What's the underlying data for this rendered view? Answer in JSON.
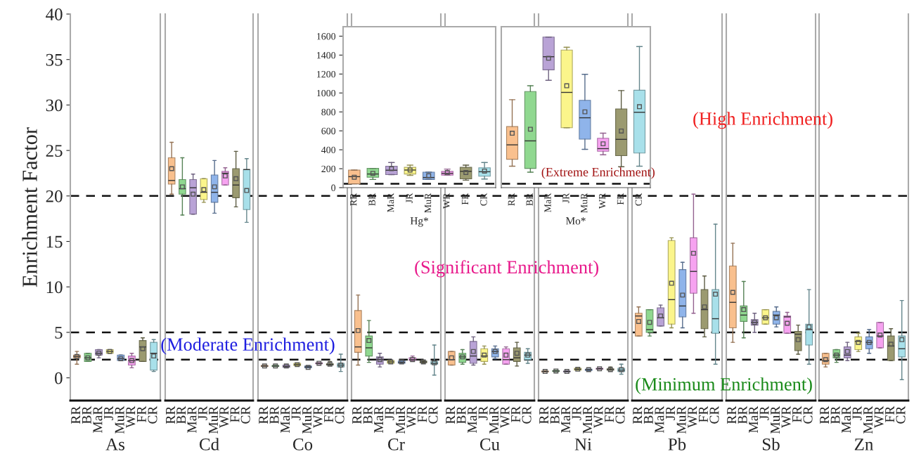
{
  "chart_data": [
    {
      "type": "box",
      "xlabel": "As",
      "ylabel": "Enrichment Factor",
      "categories": [
        "RR",
        "BR",
        "MaR",
        "JR",
        "MuR",
        "WR",
        "FR",
        "CR"
      ],
      "colors": [
        "#f9c08e",
        "#90d890",
        "#b9a3d6",
        "#fbf58b",
        "#8fb4ea",
        "#f6a3f0",
        "#9b9a70",
        "#a8e0ea"
      ],
      "ylim": [
        -2.5,
        40
      ],
      "yticks": [
        0,
        5,
        10,
        15,
        20,
        25,
        30,
        35,
        40
      ],
      "ref_lines": [
        {
          "axis": "y",
          "value": 2,
          "line_style": "dashed"
        },
        {
          "axis": "y",
          "value": 5,
          "line_style": "dashed"
        },
        {
          "axis": "y",
          "value": 20,
          "line_style": "dashed"
        }
      ],
      "boxes": [
        {
          "low": 1.5,
          "q1": 2.2,
          "median": 2.35,
          "q3": 2.5,
          "high": 2.9,
          "mean": 2.35
        },
        {
          "low": 1.8,
          "q1": 1.8,
          "median": 2.2,
          "q3": 2.7,
          "high": 2.7,
          "mean": 2.2
        },
        {
          "low": 2.2,
          "q1": 2.5,
          "median": 2.7,
          "q3": 3.1,
          "high": 3.1,
          "mean": 2.7
        },
        {
          "low": 2.7,
          "q1": 2.7,
          "median": 2.9,
          "q3": 3.1,
          "high": 3.1,
          "mean": 2.9
        },
        {
          "low": 1.9,
          "q1": 1.9,
          "median": 2.1,
          "q3": 2.5,
          "high": 2.5,
          "mean": 2.1
        },
        {
          "low": 1.1,
          "q1": 1.4,
          "median": 1.9,
          "q3": 2.4,
          "high": 2.7,
          "mean": 1.9
        },
        {
          "low": 1.8,
          "q1": 1.8,
          "median": 3.4,
          "q3": 4.1,
          "high": 4.4,
          "mean": 3.2
        },
        {
          "low": 0.7,
          "q1": 0.85,
          "median": 2.7,
          "q3": 3.9,
          "high": 4.2,
          "mean": 2.4
        }
      ]
    },
    {
      "type": "box",
      "xlabel": "Cd",
      "categories": [
        "RR",
        "BR",
        "MaR",
        "JR",
        "MuR",
        "WR",
        "FR",
        "CR"
      ],
      "colors": [
        "#f9c08e",
        "#90d890",
        "#b9a3d6",
        "#fbf58b",
        "#8fb4ea",
        "#f6a3f0",
        "#9b9a70",
        "#a8e0ea"
      ],
      "ylim": [
        -2.5,
        40
      ],
      "yticks": [
        0,
        5,
        10,
        15,
        20,
        25,
        30,
        35,
        40
      ],
      "tick_labels": "x",
      "annotations": [
        "(Moderate Enrichment)"
      ],
      "ref_lines": [
        {
          "axis": "y",
          "value": 2,
          "line_style": "dashed"
        },
        {
          "axis": "y",
          "value": 5,
          "line_style": "dashed"
        },
        {
          "axis": "y",
          "value": 20,
          "line_style": "dashed"
        }
      ],
      "boxes": [
        {
          "low": 20.2,
          "q1": 21.3,
          "median": 21.7,
          "q3": 24.2,
          "high": 25.9,
          "mean": 23.0
        },
        {
          "low": 17.9,
          "q1": 20.2,
          "median": 20.8,
          "q3": 21.8,
          "high": 24.2,
          "mean": 21.0
        },
        {
          "low": 18.0,
          "q1": 18.0,
          "median": 20.9,
          "q3": 21.8,
          "high": 22.4,
          "mean": 20.2
        },
        {
          "low": 19.3,
          "q1": 19.6,
          "median": 20.4,
          "q3": 21.9,
          "high": 21.9,
          "mean": 20.7
        },
        {
          "low": 18.1,
          "q1": 19.3,
          "median": 20.4,
          "q3": 22.3,
          "high": 23.9,
          "mean": 21.0
        },
        {
          "low": 21.2,
          "q1": 21.2,
          "median": 22.5,
          "q3": 22.7,
          "high": 23.1,
          "mean": 22.2
        },
        {
          "low": 18.8,
          "q1": 19.8,
          "median": 21.2,
          "q3": 23.0,
          "high": 24.9,
          "mean": 21.9
        },
        {
          "low": 17.1,
          "q1": 18.5,
          "median": 22.9,
          "q3": 22.9,
          "high": 24.1,
          "mean": 20.6
        }
      ]
    },
    {
      "type": "box",
      "xlabel": "Co",
      "categories": [
        "RR",
        "BR",
        "MaR",
        "JR",
        "MuR",
        "WR",
        "FR",
        "CR"
      ],
      "colors": [
        "#f9c08e",
        "#90d890",
        "#b9a3d6",
        "#fbf58b",
        "#8fb4ea",
        "#f6a3f0",
        "#9b9a70",
        "#a8e0ea"
      ],
      "ylim": [
        -2.5,
        40
      ],
      "yticks": [
        0,
        5,
        10,
        15,
        20,
        25,
        30,
        35,
        40
      ],
      "tick_labels": "x",
      "ref_lines": [
        {
          "axis": "y",
          "value": 2,
          "line_style": "dashed"
        },
        {
          "axis": "y",
          "value": 5,
          "line_style": "dashed"
        },
        {
          "axis": "y",
          "value": 20,
          "line_style": "dashed"
        }
      ],
      "boxes": [
        {
          "low": 1.25,
          "q1": 1.25,
          "median": 1.3,
          "q3": 1.35,
          "high": 1.35,
          "mean": 1.3
        },
        {
          "low": 1.25,
          "q1": 1.25,
          "median": 1.3,
          "q3": 1.35,
          "high": 1.35,
          "mean": 1.3
        },
        {
          "low": 1.15,
          "q1": 1.15,
          "median": 1.25,
          "q3": 1.4,
          "high": 1.4,
          "mean": 1.3
        },
        {
          "low": 1.35,
          "q1": 1.35,
          "median": 1.45,
          "q3": 1.6,
          "high": 1.6,
          "mean": 1.45
        },
        {
          "low": 1.1,
          "q1": 1.1,
          "median": 1.2,
          "q3": 1.3,
          "high": 1.3,
          "mean": 1.15
        },
        {
          "low": 1.55,
          "q1": 1.55,
          "median": 1.6,
          "q3": 1.65,
          "high": 1.65,
          "mean": 1.6
        },
        {
          "low": 1.4,
          "q1": 1.4,
          "median": 1.45,
          "q3": 1.55,
          "high": 1.8,
          "mean": 1.5
        },
        {
          "low": 0.7,
          "q1": 1.2,
          "median": 1.4,
          "q3": 1.6,
          "high": 2.6,
          "mean": 1.4
        }
      ]
    },
    {
      "type": "box",
      "xlabel": "Cr",
      "categories": [
        "RR",
        "BR",
        "MaR",
        "JR",
        "MuR",
        "WR",
        "FR",
        "CR"
      ],
      "colors": [
        "#f9c08e",
        "#90d890",
        "#b9a3d6",
        "#fbf58b",
        "#8fb4ea",
        "#f6a3f0",
        "#9b9a70",
        "#a8e0ea"
      ],
      "ylim": [
        -2.5,
        40
      ],
      "yticks": [
        0,
        5,
        10,
        15,
        20,
        25,
        30,
        35,
        40
      ],
      "tick_labels": "x",
      "ref_lines": [
        {
          "axis": "y",
          "value": 2,
          "line_style": "dashed"
        },
        {
          "axis": "y",
          "value": 5,
          "line_style": "dashed"
        },
        {
          "axis": "y",
          "value": 20,
          "line_style": "dashed"
        }
      ],
      "boxes": [
        {
          "low": 1.4,
          "q1": 2.8,
          "median": 3.4,
          "q3": 7.4,
          "high": 9.1,
          "mean": 5.2
        },
        {
          "low": 1.7,
          "q1": 2.4,
          "median": 3.3,
          "q3": 4.6,
          "high": 6.3,
          "mean": 4.1
        },
        {
          "low": 1.2,
          "q1": 1.5,
          "median": 2.0,
          "q3": 2.3,
          "high": 2.7,
          "mean": 2.0
        },
        {
          "low": 1.6,
          "q1": 1.6,
          "median": 1.75,
          "q3": 1.9,
          "high": 1.9,
          "mean": 1.75
        },
        {
          "low": 1.6,
          "q1": 1.6,
          "median": 1.7,
          "q3": 1.85,
          "high": 1.85,
          "mean": 1.75
        },
        {
          "low": 1.9,
          "q1": 1.9,
          "median": 2.0,
          "q3": 2.2,
          "high": 2.4,
          "mean": 2.0
        },
        {
          "low": 1.65,
          "q1": 1.65,
          "median": 1.75,
          "q3": 1.85,
          "high": 1.85,
          "mean": 1.75
        },
        {
          "low": 0.3,
          "q1": 1.5,
          "median": 1.6,
          "q3": 1.8,
          "high": 3.6,
          "mean": 1.65
        }
      ]
    },
    {
      "type": "box",
      "xlabel": "Cu",
      "categories": [
        "RR",
        "BR",
        "MaR",
        "JR",
        "MuR",
        "WR",
        "FR",
        "CR"
      ],
      "colors": [
        "#f9c08e",
        "#90d890",
        "#b9a3d6",
        "#fbf58b",
        "#8fb4ea",
        "#f6a3f0",
        "#9b9a70",
        "#a8e0ea"
      ],
      "ylim": [
        -2.5,
        40
      ],
      "yticks": [
        0,
        5,
        10,
        15,
        20,
        25,
        30,
        35,
        40
      ],
      "tick_labels": "x",
      "annotations": [
        "(Significant Enrichment)"
      ],
      "ref_lines": [
        {
          "axis": "y",
          "value": 2,
          "line_style": "dashed"
        },
        {
          "axis": "y",
          "value": 5,
          "line_style": "dashed"
        },
        {
          "axis": "y",
          "value": 20,
          "line_style": "dashed"
        }
      ],
      "boxes": [
        {
          "low": 1.4,
          "q1": 1.4,
          "median": 2.0,
          "q3": 2.9,
          "high": 2.9,
          "mean": 2.2
        },
        {
          "low": 1.5,
          "q1": 1.7,
          "median": 2.3,
          "q3": 2.7,
          "high": 3.1,
          "mean": 2.3
        },
        {
          "low": 1.4,
          "q1": 1.6,
          "median": 2.4,
          "q3": 4.0,
          "high": 4.5,
          "mean": 2.9
        },
        {
          "low": 1.5,
          "q1": 1.8,
          "median": 2.4,
          "q3": 3.2,
          "high": 3.5,
          "mean": 2.5
        },
        {
          "low": 2.1,
          "q1": 2.3,
          "median": 2.9,
          "q3": 3.2,
          "high": 3.5,
          "mean": 2.9
        },
        {
          "low": 1.5,
          "q1": 1.5,
          "median": 2.0,
          "q3": 3.2,
          "high": 3.4,
          "mean": 2.5
        },
        {
          "low": 1.3,
          "q1": 1.8,
          "median": 2.2,
          "q3": 3.3,
          "high": 3.9,
          "mean": 2.7
        },
        {
          "low": 1.6,
          "q1": 2.0,
          "median": 2.5,
          "q3": 2.8,
          "high": 3.2,
          "mean": 2.5
        }
      ]
    },
    {
      "type": "box",
      "xlabel": "Ni",
      "categories": [
        "RR",
        "BR",
        "MaR",
        "JR",
        "MuR",
        "WR",
        "FR",
        "CR"
      ],
      "colors": [
        "#f9c08e",
        "#90d890",
        "#b9a3d6",
        "#fbf58b",
        "#8fb4ea",
        "#f6a3f0",
        "#9b9a70",
        "#a8e0ea"
      ],
      "ylim": [
        -2.5,
        40
      ],
      "yticks": [
        0,
        5,
        10,
        15,
        20,
        25,
        30,
        35,
        40
      ],
      "tick_labels": "x",
      "ref_lines": [
        {
          "axis": "y",
          "value": 2,
          "line_style": "dashed"
        },
        {
          "axis": "y",
          "value": 5,
          "line_style": "dashed"
        },
        {
          "axis": "y",
          "value": 20,
          "line_style": "dashed"
        }
      ],
      "boxes": [
        {
          "low": 0.65,
          "q1": 0.65,
          "median": 0.7,
          "q3": 0.75,
          "high": 0.75,
          "mean": 0.7
        },
        {
          "low": 0.7,
          "q1": 0.7,
          "median": 0.75,
          "q3": 0.8,
          "high": 0.8,
          "mean": 0.75
        },
        {
          "low": 0.65,
          "q1": 0.65,
          "median": 0.7,
          "q3": 0.75,
          "high": 0.75,
          "mean": 0.7
        },
        {
          "low": 0.85,
          "q1": 0.85,
          "median": 0.95,
          "q3": 1.05,
          "high": 1.05,
          "mean": 0.95
        },
        {
          "low": 0.8,
          "q1": 0.8,
          "median": 0.9,
          "q3": 0.95,
          "high": 0.95,
          "mean": 0.9
        },
        {
          "low": 0.95,
          "q1": 0.95,
          "median": 1.0,
          "q3": 1.05,
          "high": 1.05,
          "mean": 1.0
        },
        {
          "low": 0.85,
          "q1": 0.85,
          "median": 0.9,
          "q3": 1.0,
          "high": 1.2,
          "mean": 0.9
        },
        {
          "low": 0.4,
          "q1": 0.7,
          "median": 0.85,
          "q3": 1.05,
          "high": 1.5,
          "mean": 0.9
        }
      ]
    },
    {
      "type": "box",
      "xlabel": "Pb",
      "categories": [
        "RR",
        "BR",
        "MaR",
        "JR",
        "MuR",
        "WR",
        "FR",
        "CR"
      ],
      "colors": [
        "#f9c08e",
        "#90d890",
        "#b9a3d6",
        "#fbf58b",
        "#8fb4ea",
        "#f6a3f0",
        "#9b9a70",
        "#a8e0ea"
      ],
      "ylim": [
        -2.5,
        40
      ],
      "yticks": [
        0,
        5,
        10,
        15,
        20,
        25,
        30,
        35,
        40
      ],
      "tick_labels": "x",
      "annotations": [
        "(Minimum Enrichment)"
      ],
      "ref_lines": [
        {
          "axis": "y",
          "value": 2,
          "line_style": "dashed"
        },
        {
          "axis": "y",
          "value": 5,
          "line_style": "dashed"
        },
        {
          "axis": "y",
          "value": 20,
          "line_style": "dashed"
        }
      ],
      "boxes": [
        {
          "low": 4.6,
          "q1": 4.6,
          "median": 6.8,
          "q3": 7.1,
          "high": 7.8,
          "mean": 6.2
        },
        {
          "low": 4.6,
          "q1": 5.0,
          "median": 5.3,
          "q3": 7.5,
          "high": 7.5,
          "mean": 6.1
        },
        {
          "low": 5.7,
          "q1": 5.7,
          "median": 6.6,
          "q3": 7.7,
          "high": 8.0,
          "mean": 6.8
        },
        {
          "low": 5.5,
          "q1": 5.9,
          "median": 8.6,
          "q3": 15.1,
          "high": 15.4,
          "mean": 10.4
        },
        {
          "low": 5.5,
          "q1": 6.7,
          "median": 7.9,
          "q3": 11.9,
          "high": 12.7,
          "mean": 9.1
        },
        {
          "low": 7.1,
          "q1": 9.3,
          "median": 11.7,
          "q3": 15.4,
          "high": 20.2,
          "mean": 13.7
        },
        {
          "low": 4.5,
          "q1": 5.4,
          "median": 7.5,
          "q3": 9.7,
          "high": 11.2,
          "mean": 7.8
        },
        {
          "low": 1.5,
          "q1": 4.9,
          "median": 6.5,
          "q3": 9.7,
          "high": 16.9,
          "mean": 9.2
        }
      ]
    },
    {
      "type": "box",
      "xlabel": "Sb",
      "categories": [
        "RR",
        "BR",
        "MaR",
        "JR",
        "MuR",
        "WR",
        "FR",
        "CR"
      ],
      "colors": [
        "#f9c08e",
        "#90d890",
        "#b9a3d6",
        "#fbf58b",
        "#8fb4ea",
        "#f6a3f0",
        "#9b9a70",
        "#a8e0ea"
      ],
      "ylim": [
        -2.5,
        40
      ],
      "yticks": [
        0,
        5,
        10,
        15,
        20,
        25,
        30,
        35,
        40
      ],
      "tick_labels": "x",
      "annotations": [
        "(High Enrichment)"
      ],
      "ref_lines": [
        {
          "axis": "y",
          "value": 2,
          "line_style": "dashed"
        },
        {
          "axis": "y",
          "value": 5,
          "line_style": "dashed"
        },
        {
          "axis": "y",
          "value": 20,
          "line_style": "dashed"
        }
      ],
      "boxes": [
        {
          "low": 3.9,
          "q1": 5.5,
          "median": 8.3,
          "q3": 12.3,
          "high": 14.8,
          "mean": 9.4
        },
        {
          "low": 4.4,
          "q1": 6.2,
          "median": 6.9,
          "q3": 7.9,
          "high": 10.6,
          "mean": 7.5
        },
        {
          "low": 5.0,
          "q1": 5.8,
          "median": 6.1,
          "q3": 6.4,
          "high": 7.1,
          "mean": 6.1
        },
        {
          "low": 5.9,
          "q1": 5.9,
          "median": 6.6,
          "q3": 7.5,
          "high": 7.5,
          "mean": 6.6
        },
        {
          "low": 5.6,
          "q1": 5.9,
          "median": 6.9,
          "q3": 7.3,
          "high": 7.8,
          "mean": 6.6
        },
        {
          "low": 4.9,
          "q1": 4.9,
          "median": 6.7,
          "q3": 6.8,
          "high": 7.2,
          "mean": 6.0
        },
        {
          "low": 2.6,
          "q1": 3.0,
          "median": 4.8,
          "q3": 5.1,
          "high": 5.8,
          "mean": 4.2
        },
        {
          "low": 1.5,
          "q1": 3.6,
          "median": 5.3,
          "q3": 5.9,
          "high": 9.7,
          "mean": 5.6
        }
      ]
    },
    {
      "type": "box",
      "xlabel": "Zn",
      "categories": [
        "RR",
        "BR",
        "MaR",
        "JR",
        "MuR",
        "WR",
        "FR",
        "CR"
      ],
      "colors": [
        "#f9c08e",
        "#90d890",
        "#b9a3d6",
        "#fbf58b",
        "#8fb4ea",
        "#f6a3f0",
        "#9b9a70",
        "#a8e0ea"
      ],
      "ylim": [
        -2.5,
        40
      ],
      "yticks": [
        0,
        5,
        10,
        15,
        20,
        25,
        30,
        35,
        40
      ],
      "tick_labels": "x",
      "ref_lines": [
        {
          "axis": "y",
          "value": 2,
          "line_style": "dashed"
        },
        {
          "axis": "y",
          "value": 5,
          "line_style": "dashed"
        },
        {
          "axis": "y",
          "value": 20,
          "line_style": "dashed"
        }
      ],
      "boxes": [
        {
          "low": 1.2,
          "q1": 1.5,
          "median": 1.9,
          "q3": 2.7,
          "high": 2.7,
          "mean": 2.0
        },
        {
          "low": 1.7,
          "q1": 2.2,
          "median": 2.5,
          "q3": 3.1,
          "high": 3.1,
          "mean": 2.5
        },
        {
          "low": 1.9,
          "q1": 2.2,
          "median": 2.5,
          "q3": 3.4,
          "high": 3.9,
          "mean": 2.9
        },
        {
          "low": 2.9,
          "q1": 3.1,
          "median": 4.0,
          "q3": 4.5,
          "high": 4.9,
          "mean": 3.9
        },
        {
          "low": 2.7,
          "q1": 3.2,
          "median": 3.9,
          "q3": 4.5,
          "high": 5.3,
          "mean": 3.9
        },
        {
          "low": 3.3,
          "q1": 3.3,
          "median": 4.6,
          "q3": 6.1,
          "high": 6.1,
          "mean": 4.7
        },
        {
          "low": 1.9,
          "q1": 1.9,
          "median": 3.5,
          "q3": 4.6,
          "high": 5.4,
          "mean": 3.7
        },
        {
          "low": -0.2,
          "q1": 2.3,
          "median": 3.2,
          "q3": 4.6,
          "high": 8.5,
          "mean": 4.2
        }
      ]
    },
    {
      "type": "box",
      "xlabel": "Hg*",
      "categories": [
        "RR",
        "BR",
        "MaR",
        "JR",
        "MuR",
        "WR",
        "FR",
        "CR"
      ],
      "colors": [
        "#f9c08e",
        "#90d890",
        "#b9a3d6",
        "#fbf58b",
        "#8fb4ea",
        "#f6a3f0",
        "#9b9a70",
        "#a8e0ea"
      ],
      "ylim": [
        0,
        1700
      ],
      "yticks": [
        0,
        200,
        400,
        600,
        800,
        1000,
        1200,
        1400,
        1600
      ],
      "ref_lines": [
        {
          "axis": "y",
          "value": 40,
          "line_style": "dashed"
        }
      ],
      "boxes": [
        {
          "low": 40,
          "q1": 40,
          "median": 116,
          "q3": 186,
          "high": 186,
          "mean": 110
        },
        {
          "low": 86,
          "q1": 109,
          "median": 144,
          "q3": 203,
          "high": 203,
          "mean": 151
        },
        {
          "low": 137,
          "q1": 137,
          "median": 184,
          "q3": 226,
          "high": 265,
          "mean": 200
        },
        {
          "low": 130,
          "q1": 144,
          "median": 186,
          "q3": 214,
          "high": 238,
          "mean": 186
        },
        {
          "low": 86,
          "q1": 86,
          "median": 107,
          "q3": 163,
          "high": 163,
          "mean": 126
        },
        {
          "low": 133,
          "q1": 133,
          "median": 151,
          "q3": 172,
          "high": 196,
          "mean": 160
        },
        {
          "low": 79,
          "q1": 93,
          "median": 172,
          "q3": 214,
          "high": 238,
          "mean": 160
        },
        {
          "low": 91,
          "q1": 121,
          "median": 168,
          "q3": 210,
          "high": 265,
          "mean": 175
        }
      ]
    },
    {
      "type": "box",
      "xlabel": "Mo*",
      "categories": [
        "RR",
        "BR",
        "MaR",
        "JR",
        "MuR",
        "WR",
        "FR",
        "CR"
      ],
      "colors": [
        "#f9c08e",
        "#90d890",
        "#b9a3d6",
        "#fbf58b",
        "#8fb4ea",
        "#f6a3f0",
        "#9b9a70",
        "#a8e0ea"
      ],
      "ylim": [
        0,
        1700
      ],
      "yticks": [
        0,
        200,
        400,
        600,
        800,
        1000,
        1200,
        1400,
        1600
      ],
      "tick_labels": "x",
      "annotations": [
        "(Extreme Enrichment)"
      ],
      "ref_lines": [
        {
          "axis": "y",
          "value": 40,
          "line_style": "dashed"
        }
      ],
      "boxes": [
        {
          "low": 226,
          "q1": 300,
          "median": 452,
          "q3": 645,
          "high": 929,
          "mean": 575
        },
        {
          "low": 163,
          "q1": 203,
          "median": 494,
          "q3": 1015,
          "high": 1076,
          "mean": 617
        },
        {
          "low": 1134,
          "q1": 1244,
          "median": 1383,
          "q3": 1590,
          "high": 1590,
          "mean": 1367
        },
        {
          "low": 633,
          "q1": 633,
          "median": 1006,
          "q3": 1453,
          "high": 1483,
          "mean": 1076
        },
        {
          "low": 405,
          "q1": 512,
          "median": 738,
          "q3": 922,
          "high": 1197,
          "mean": 801
        },
        {
          "low": 347,
          "q1": 384,
          "median": 412,
          "q3": 522,
          "high": 575,
          "mean": 463
        },
        {
          "low": 221,
          "q1": 338,
          "median": 510,
          "q3": 831,
          "high": 1025,
          "mean": 598
        },
        {
          "low": 226,
          "q1": 366,
          "median": 796,
          "q3": 1029,
          "high": 1490,
          "mean": 855
        }
      ]
    }
  ]
}
